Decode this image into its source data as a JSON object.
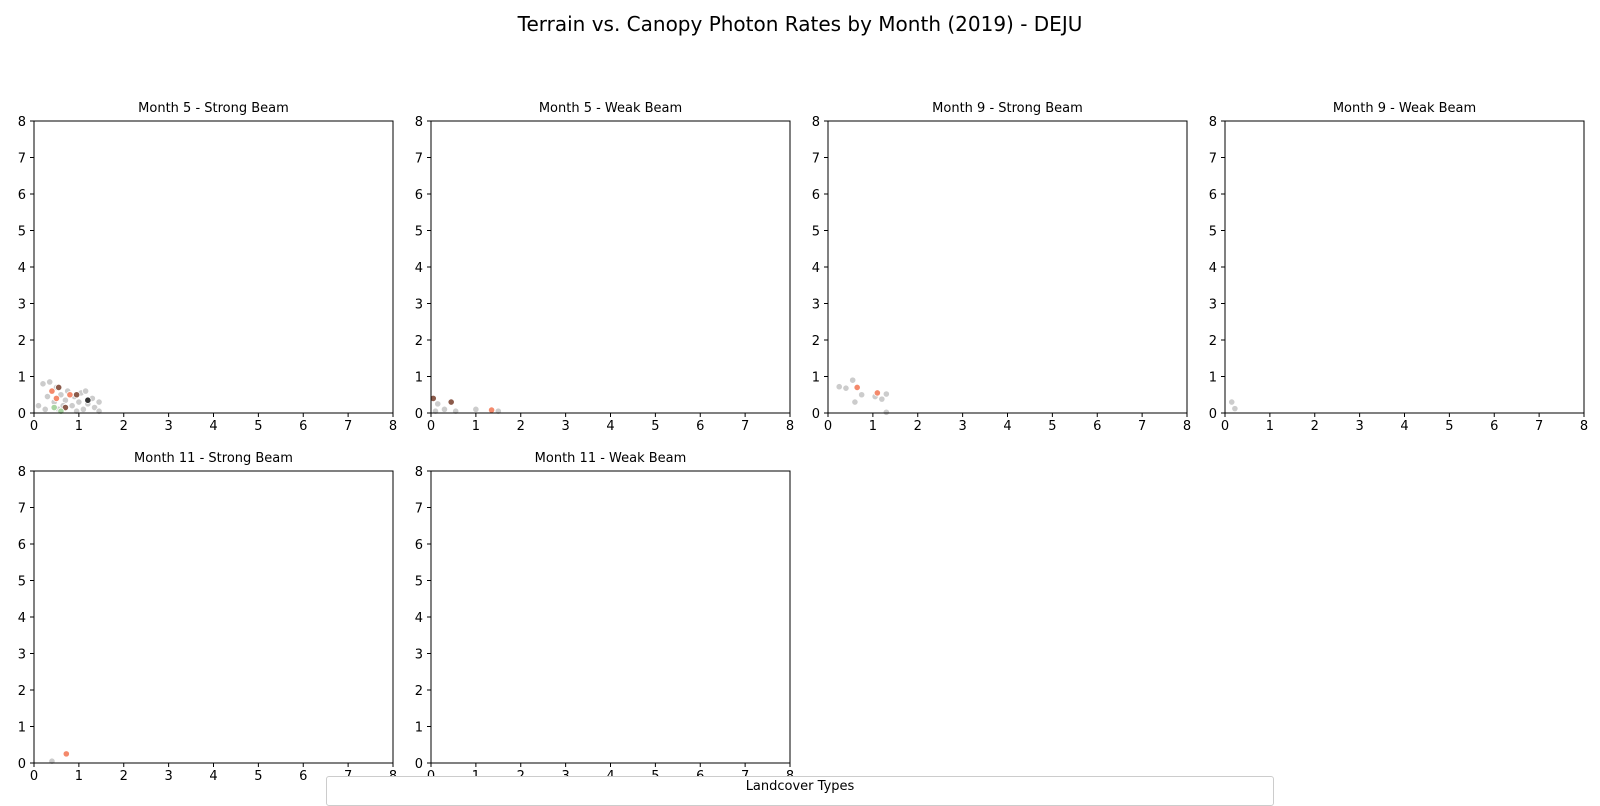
{
  "figure": {
    "suptitle": "Terrain vs. Canopy Photon Rates by Month (2019) - DEJU",
    "legend_title": "Landcover Types"
  },
  "colors": {
    "grey": "#cccccc",
    "salmon": "#f4896b",
    "brown": "#8b5a4a",
    "green": "#a8d5a2",
    "dark": "#333333",
    "axis": "#000000"
  },
  "chart_data": [
    {
      "type": "scatter",
      "title": "Month 5 - Strong Beam",
      "xlim": [
        0,
        8
      ],
      "ylim": [
        0,
        8
      ],
      "xticks": [
        0,
        1,
        2,
        3,
        4,
        5,
        6,
        7,
        8
      ],
      "yticks": [
        0,
        1,
        2,
        3,
        4,
        5,
        6,
        7,
        8
      ],
      "points": [
        {
          "x": 0.1,
          "y": 0.2,
          "c": "grey"
        },
        {
          "x": 0.2,
          "y": 0.8,
          "c": "grey"
        },
        {
          "x": 0.3,
          "y": 0.45,
          "c": "grey"
        },
        {
          "x": 0.35,
          "y": 0.85,
          "c": "grey"
        },
        {
          "x": 0.45,
          "y": 0.3,
          "c": "grey"
        },
        {
          "x": 0.5,
          "y": 0.7,
          "c": "grey"
        },
        {
          "x": 0.55,
          "y": 0.1,
          "c": "grey"
        },
        {
          "x": 0.6,
          "y": 0.5,
          "c": "grey"
        },
        {
          "x": 0.7,
          "y": 0.35,
          "c": "grey"
        },
        {
          "x": 0.75,
          "y": 0.6,
          "c": "grey"
        },
        {
          "x": 0.85,
          "y": 0.2,
          "c": "grey"
        },
        {
          "x": 0.9,
          "y": 0.45,
          "c": "grey"
        },
        {
          "x": 1.0,
          "y": 0.3,
          "c": "grey"
        },
        {
          "x": 1.05,
          "y": 0.55,
          "c": "grey"
        },
        {
          "x": 1.1,
          "y": 0.1,
          "c": "grey"
        },
        {
          "x": 1.15,
          "y": 0.6,
          "c": "grey"
        },
        {
          "x": 1.2,
          "y": 0.25,
          "c": "grey"
        },
        {
          "x": 1.3,
          "y": 0.4,
          "c": "grey"
        },
        {
          "x": 1.35,
          "y": 0.15,
          "c": "grey"
        },
        {
          "x": 1.45,
          "y": 0.3,
          "c": "grey"
        },
        {
          "x": 1.45,
          "y": 0.05,
          "c": "grey"
        },
        {
          "x": 0.25,
          "y": 0.1,
          "c": "grey"
        },
        {
          "x": 0.65,
          "y": 0.2,
          "c": "grey"
        },
        {
          "x": 0.95,
          "y": 0.05,
          "c": "grey"
        },
        {
          "x": 0.4,
          "y": 0.6,
          "c": "salmon"
        },
        {
          "x": 0.5,
          "y": 0.4,
          "c": "salmon"
        },
        {
          "x": 0.8,
          "y": 0.5,
          "c": "salmon"
        },
        {
          "x": 0.55,
          "y": 0.7,
          "c": "brown"
        },
        {
          "x": 0.95,
          "y": 0.5,
          "c": "brown"
        },
        {
          "x": 0.7,
          "y": 0.15,
          "c": "brown"
        },
        {
          "x": 1.2,
          "y": 0.35,
          "c": "dark"
        },
        {
          "x": 0.6,
          "y": 0.05,
          "c": "green"
        },
        {
          "x": 0.45,
          "y": 0.15,
          "c": "green"
        }
      ]
    },
    {
      "type": "scatter",
      "title": "Month 5 - Weak Beam",
      "xlim": [
        0,
        8
      ],
      "ylim": [
        0,
        8
      ],
      "xticks": [
        0,
        1,
        2,
        3,
        4,
        5,
        6,
        7,
        8
      ],
      "yticks": [
        0,
        1,
        2,
        3,
        4,
        5,
        6,
        7,
        8
      ],
      "points": [
        {
          "x": 0.05,
          "y": 0.4,
          "c": "brown"
        },
        {
          "x": 0.15,
          "y": 0.25,
          "c": "grey"
        },
        {
          "x": 0.3,
          "y": 0.1,
          "c": "grey"
        },
        {
          "x": 0.45,
          "y": 0.3,
          "c": "brown"
        },
        {
          "x": 0.55,
          "y": 0.05,
          "c": "grey"
        },
        {
          "x": 1.0,
          "y": 0.1,
          "c": "grey"
        },
        {
          "x": 1.35,
          "y": 0.08,
          "c": "salmon"
        },
        {
          "x": 1.5,
          "y": 0.05,
          "c": "grey"
        },
        {
          "x": 0.1,
          "y": 0.05,
          "c": "grey"
        }
      ]
    },
    {
      "type": "scatter",
      "title": "Month 9 - Strong Beam",
      "xlim": [
        0,
        8
      ],
      "ylim": [
        0,
        8
      ],
      "xticks": [
        0,
        1,
        2,
        3,
        4,
        5,
        6,
        7,
        8
      ],
      "yticks": [
        0,
        1,
        2,
        3,
        4,
        5,
        6,
        7,
        8
      ],
      "points": [
        {
          "x": 0.25,
          "y": 0.72,
          "c": "grey"
        },
        {
          "x": 0.4,
          "y": 0.68,
          "c": "grey"
        },
        {
          "x": 0.55,
          "y": 0.9,
          "c": "grey"
        },
        {
          "x": 0.6,
          "y": 0.3,
          "c": "grey"
        },
        {
          "x": 0.65,
          "y": 0.7,
          "c": "salmon"
        },
        {
          "x": 0.75,
          "y": 0.5,
          "c": "grey"
        },
        {
          "x": 1.05,
          "y": 0.45,
          "c": "grey"
        },
        {
          "x": 1.1,
          "y": 0.55,
          "c": "salmon"
        },
        {
          "x": 1.2,
          "y": 0.38,
          "c": "grey"
        },
        {
          "x": 1.3,
          "y": 0.52,
          "c": "grey"
        },
        {
          "x": 1.3,
          "y": 0.02,
          "c": "grey"
        }
      ]
    },
    {
      "type": "scatter",
      "title": "Month 9 - Weak Beam",
      "xlim": [
        0,
        8
      ],
      "ylim": [
        0,
        8
      ],
      "xticks": [
        0,
        1,
        2,
        3,
        4,
        5,
        6,
        7,
        8
      ],
      "yticks": [
        0,
        1,
        2,
        3,
        4,
        5,
        6,
        7,
        8
      ],
      "points": [
        {
          "x": 0.15,
          "y": 0.3,
          "c": "grey"
        },
        {
          "x": 0.22,
          "y": 0.12,
          "c": "grey"
        }
      ]
    },
    {
      "type": "scatter",
      "title": "Month 11 - Strong Beam",
      "xlim": [
        0,
        8
      ],
      "ylim": [
        0,
        8
      ],
      "xticks": [
        0,
        1,
        2,
        3,
        4,
        5,
        6,
        7,
        8
      ],
      "yticks": [
        0,
        1,
        2,
        3,
        4,
        5,
        6,
        7,
        8
      ],
      "points": [
        {
          "x": 0.4,
          "y": 0.05,
          "c": "grey"
        },
        {
          "x": 0.72,
          "y": 0.25,
          "c": "salmon"
        }
      ]
    },
    {
      "type": "scatter",
      "title": "Month 11 - Weak Beam",
      "xlim": [
        0,
        8
      ],
      "ylim": [
        0,
        8
      ],
      "xticks": [
        0,
        1,
        2,
        3,
        4,
        5,
        6,
        7,
        8
      ],
      "yticks": [
        0,
        1,
        2,
        3,
        4,
        5,
        6,
        7,
        8
      ],
      "points": []
    }
  ]
}
